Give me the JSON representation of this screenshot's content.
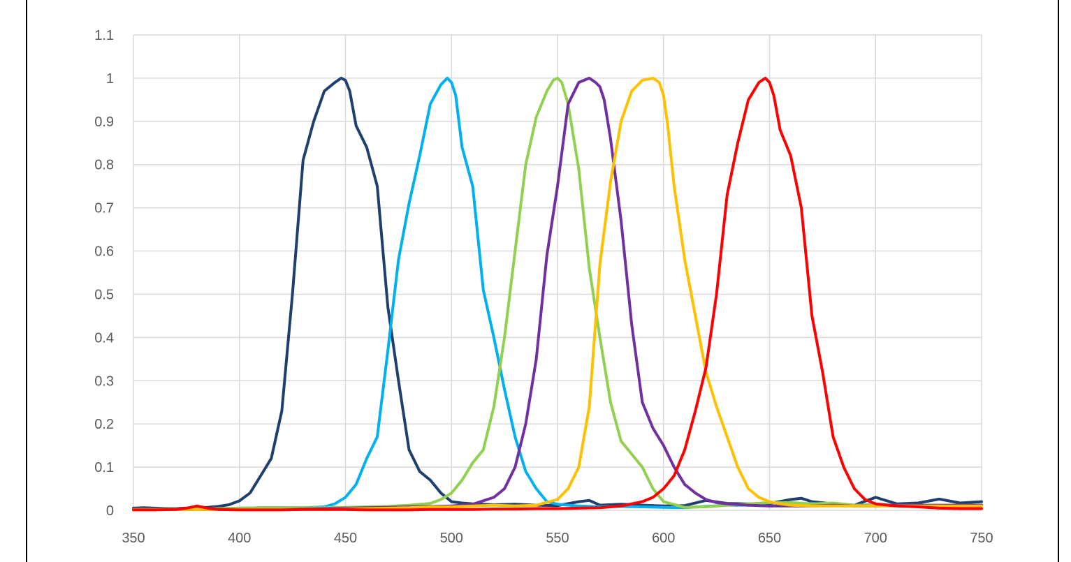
{
  "chart_data": {
    "type": "line",
    "title": "",
    "xlabel": "",
    "ylabel": "",
    "xlim": [
      350,
      750
    ],
    "ylim": [
      0,
      1.1
    ],
    "x_ticks": [
      "350",
      "400",
      "450",
      "500",
      "550",
      "600",
      "650",
      "700",
      "750"
    ],
    "y_ticks": [
      "0",
      "0.1",
      "0.2",
      "0.3",
      "0.4",
      "0.5",
      "0.6",
      "0.7",
      "0.8",
      "0.9",
      "1",
      "1.1"
    ],
    "grid": true,
    "legend": "none",
    "series": [
      {
        "color": "#1f3f6e",
        "x": [
          350,
          355,
          360,
          365,
          370,
          375,
          380,
          385,
          390,
          395,
          400,
          405,
          410,
          415,
          420,
          425,
          430,
          435,
          440,
          445,
          448,
          450,
          452,
          455,
          460,
          465,
          470,
          475,
          480,
          485,
          490,
          495,
          500,
          505,
          510,
          520,
          530,
          540,
          550,
          560,
          565,
          570,
          580,
          590,
          600,
          610,
          620,
          630,
          640,
          650,
          660,
          665,
          670,
          680,
          690,
          700,
          710,
          720,
          730,
          740,
          750
        ],
        "y": [
          0.005,
          0.006,
          0.005,
          0.004,
          0.004,
          0.005,
          0.006,
          0.007,
          0.009,
          0.013,
          0.022,
          0.04,
          0.08,
          0.12,
          0.23,
          0.5,
          0.81,
          0.9,
          0.97,
          0.99,
          1.0,
          0.995,
          0.97,
          0.89,
          0.84,
          0.75,
          0.47,
          0.3,
          0.14,
          0.09,
          0.07,
          0.04,
          0.02,
          0.017,
          0.015,
          0.013,
          0.014,
          0.012,
          0.011,
          0.02,
          0.023,
          0.012,
          0.014,
          0.012,
          0.01,
          0.011,
          0.023,
          0.016,
          0.015,
          0.016,
          0.025,
          0.028,
          0.02,
          0.015,
          0.012,
          0.03,
          0.015,
          0.017,
          0.026,
          0.017,
          0.02
        ]
      },
      {
        "color": "#00b0f0",
        "x": [
          350,
          360,
          370,
          380,
          390,
          400,
          410,
          420,
          430,
          435,
          440,
          445,
          450,
          455,
          460,
          465,
          470,
          475,
          480,
          485,
          490,
          495,
          498,
          500,
          502,
          505,
          510,
          515,
          520,
          525,
          530,
          535,
          540,
          545,
          550,
          555,
          560,
          570,
          580,
          590,
          600,
          610,
          620,
          630,
          640,
          650,
          660,
          670,
          680,
          690,
          700,
          710,
          720,
          730,
          740,
          750
        ],
        "y": [
          0.002,
          0.002,
          0.003,
          0.004,
          0.004,
          0.005,
          0.006,
          0.006,
          0.006,
          0.007,
          0.008,
          0.015,
          0.03,
          0.06,
          0.12,
          0.17,
          0.37,
          0.58,
          0.71,
          0.82,
          0.94,
          0.985,
          1.0,
          0.99,
          0.96,
          0.84,
          0.75,
          0.51,
          0.4,
          0.28,
          0.17,
          0.09,
          0.05,
          0.02,
          0.014,
          0.012,
          0.01,
          0.008,
          0.009,
          0.008,
          0.007,
          0.006,
          0.009,
          0.012,
          0.012,
          0.01,
          0.012,
          0.016,
          0.013,
          0.012,
          0.013,
          0.012,
          0.012,
          0.01,
          0.01,
          0.012
        ]
      },
      {
        "color": "#92d050",
        "x": [
          350,
          360,
          370,
          380,
          390,
          400,
          410,
          420,
          430,
          440,
          450,
          460,
          470,
          480,
          490,
          495,
          500,
          505,
          510,
          515,
          520,
          525,
          530,
          535,
          540,
          545,
          548,
          550,
          552,
          555,
          560,
          565,
          570,
          575,
          580,
          585,
          590,
          595,
          600,
          610,
          620,
          630,
          640,
          650,
          660,
          670,
          680,
          690,
          700,
          710,
          720,
          730,
          740,
          750
        ],
        "y": [
          0.002,
          0.002,
          0.003,
          0.003,
          0.004,
          0.005,
          0.006,
          0.006,
          0.006,
          0.006,
          0.007,
          0.008,
          0.009,
          0.012,
          0.016,
          0.025,
          0.04,
          0.07,
          0.11,
          0.14,
          0.24,
          0.4,
          0.6,
          0.8,
          0.91,
          0.97,
          0.995,
          1.0,
          0.99,
          0.94,
          0.79,
          0.56,
          0.4,
          0.25,
          0.16,
          0.13,
          0.1,
          0.05,
          0.02,
          0.007,
          0.008,
          0.012,
          0.015,
          0.018,
          0.018,
          0.015,
          0.017,
          0.012,
          0.012,
          0.011,
          0.01,
          0.011,
          0.012,
          0.012
        ]
      },
      {
        "color": "#7030a0",
        "x": [
          350,
          360,
          370,
          380,
          390,
          400,
          410,
          420,
          430,
          440,
          450,
          460,
          470,
          480,
          490,
          500,
          510,
          520,
          525,
          530,
          535,
          540,
          545,
          550,
          555,
          560,
          565,
          568,
          570,
          572,
          575,
          580,
          585,
          590,
          595,
          600,
          605,
          610,
          615,
          620,
          625,
          630,
          640,
          650,
          660,
          670,
          680,
          690,
          700,
          710,
          720,
          730,
          740,
          750
        ],
        "y": [
          0.002,
          0.002,
          0.002,
          0.002,
          0.002,
          0.002,
          0.002,
          0.002,
          0.003,
          0.004,
          0.005,
          0.006,
          0.007,
          0.008,
          0.009,
          0.01,
          0.014,
          0.03,
          0.05,
          0.1,
          0.2,
          0.35,
          0.59,
          0.75,
          0.94,
          0.99,
          1.0,
          0.99,
          0.98,
          0.95,
          0.86,
          0.67,
          0.43,
          0.25,
          0.19,
          0.15,
          0.1,
          0.06,
          0.04,
          0.025,
          0.018,
          0.015,
          0.012,
          0.01,
          0.01,
          0.01,
          0.012,
          0.01,
          0.01,
          0.012,
          0.012,
          0.012,
          0.012,
          0.012
        ]
      },
      {
        "color": "#ffc000",
        "x": [
          350,
          360,
          370,
          380,
          390,
          400,
          410,
          420,
          430,
          440,
          450,
          460,
          470,
          480,
          490,
          500,
          510,
          520,
          530,
          540,
          550,
          555,
          560,
          565,
          570,
          575,
          580,
          585,
          590,
          595,
          598,
          600,
          602,
          605,
          610,
          615,
          620,
          625,
          630,
          635,
          640,
          645,
          650,
          655,
          660,
          670,
          680,
          690,
          700,
          710,
          720,
          730,
          740,
          750
        ],
        "y": [
          0.002,
          0.002,
          0.002,
          0.002,
          0.002,
          0.002,
          0.002,
          0.002,
          0.002,
          0.002,
          0.003,
          0.004,
          0.005,
          0.006,
          0.008,
          0.008,
          0.01,
          0.012,
          0.01,
          0.012,
          0.025,
          0.05,
          0.1,
          0.24,
          0.57,
          0.76,
          0.9,
          0.97,
          0.995,
          1.0,
          0.99,
          0.96,
          0.89,
          0.75,
          0.58,
          0.45,
          0.32,
          0.24,
          0.17,
          0.1,
          0.05,
          0.03,
          0.02,
          0.015,
          0.012,
          0.01,
          0.01,
          0.01,
          0.01,
          0.01,
          0.01,
          0.01,
          0.01,
          0.01
        ]
      },
      {
        "color": "#ff0000",
        "x": [
          350,
          360,
          370,
          375,
          380,
          385,
          390,
          400,
          410,
          420,
          430,
          440,
          450,
          460,
          470,
          480,
          490,
          500,
          510,
          520,
          530,
          540,
          550,
          560,
          570,
          580,
          590,
          595,
          600,
          605,
          610,
          615,
          620,
          625,
          630,
          635,
          640,
          645,
          648,
          650,
          652,
          655,
          660,
          665,
          670,
          675,
          680,
          685,
          690,
          695,
          700,
          710,
          720,
          730,
          740,
          750
        ],
        "y": [
          0.001,
          0.001,
          0.002,
          0.005,
          0.01,
          0.005,
          0.002,
          0.001,
          0.001,
          0.001,
          0.002,
          0.002,
          0.002,
          0.001,
          0.001,
          0.001,
          0.002,
          0.002,
          0.002,
          0.003,
          0.003,
          0.004,
          0.004,
          0.005,
          0.006,
          0.01,
          0.02,
          0.03,
          0.05,
          0.08,
          0.14,
          0.23,
          0.33,
          0.5,
          0.73,
          0.85,
          0.95,
          0.99,
          1.0,
          0.99,
          0.96,
          0.88,
          0.82,
          0.7,
          0.45,
          0.32,
          0.17,
          0.1,
          0.05,
          0.025,
          0.015,
          0.01,
          0.008,
          0.005,
          0.004,
          0.004
        ]
      }
    ]
  }
}
